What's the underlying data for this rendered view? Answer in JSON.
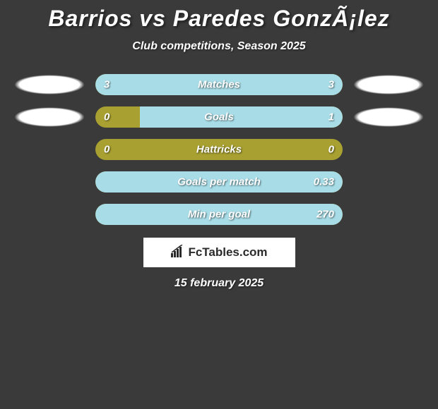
{
  "title": "Barrios vs Paredes GonzÃ¡lez",
  "subtitle": "Club competitions, Season 2025",
  "date": "15 february 2025",
  "logo": {
    "text": "FcTables.com"
  },
  "colors": {
    "background": "#3a3a3a",
    "bar_base": "#a8a030",
    "bar_fill_light": "#a8dde8",
    "text": "#ffffff",
    "avatar": "#ffffff"
  },
  "stats": [
    {
      "label": "Matches",
      "left_value": "3",
      "right_value": "3",
      "left_fill_pct": 50,
      "right_fill_pct": 50,
      "left_color": "#a8dde8",
      "right_color": "#a8dde8",
      "show_avatar": true
    },
    {
      "label": "Goals",
      "left_value": "0",
      "right_value": "1",
      "left_fill_pct": 0,
      "right_fill_pct": 82,
      "left_color": "#a8dde8",
      "right_color": "#a8dde8",
      "show_avatar": true
    },
    {
      "label": "Hattricks",
      "left_value": "0",
      "right_value": "0",
      "left_fill_pct": 0,
      "right_fill_pct": 0,
      "left_color": "#a8dde8",
      "right_color": "#a8dde8",
      "show_avatar": false
    },
    {
      "label": "Goals per match",
      "left_value": "",
      "right_value": "0.33",
      "left_fill_pct": 0,
      "right_fill_pct": 100,
      "left_color": "#a8dde8",
      "right_color": "#a8dde8",
      "show_avatar": false
    },
    {
      "label": "Min per goal",
      "left_value": "",
      "right_value": "270",
      "left_fill_pct": 0,
      "right_fill_pct": 100,
      "left_color": "#a8dde8",
      "right_color": "#a8dde8",
      "show_avatar": false
    }
  ]
}
